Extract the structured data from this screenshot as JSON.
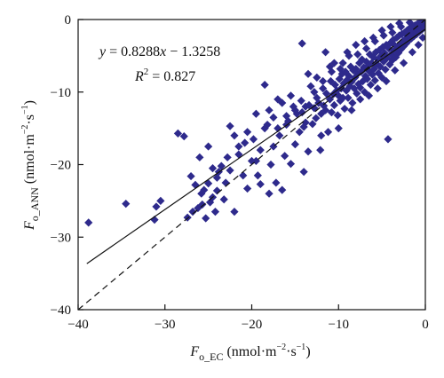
{
  "chart_data": {
    "type": "scatter",
    "title": "",
    "xlabel": {
      "var": "F",
      "sub": "o_EC",
      "unit_prefix": " (nmol·m",
      "exp1": "−2",
      "mid": "·s",
      "exp2": "−1",
      "unit_suffix": ")"
    },
    "ylabel": {
      "var": "F",
      "sub": "o_ANN",
      "unit_prefix": " (nmol·m",
      "exp1": "−2",
      "mid": "·s",
      "exp2": "−1",
      "unit_suffix": ")"
    },
    "xlim": [
      -40,
      0
    ],
    "ylim": [
      -40,
      0
    ],
    "xticks": [
      -40,
      -30,
      -20,
      -10,
      0
    ],
    "yticks": [
      -40,
      -30,
      -20,
      -10,
      0
    ],
    "xtick_labels": [
      "−40",
      "−30",
      "−20",
      "−10",
      "0"
    ],
    "ytick_labels": [
      "−40",
      "−30",
      "−20",
      "−10",
      "0"
    ],
    "grid": false,
    "marker": "diamond",
    "marker_color": "#2e2a8c",
    "annotation": {
      "equation": {
        "y": "y",
        "eq": " = 0.8288",
        "x": "x",
        "rest": " − 1.3258"
      },
      "r2": {
        "R": "R",
        "sup": "2",
        "rest": " = 0.827"
      }
    },
    "fit_line": {
      "slope": 0.8288,
      "intercept": -1.3258,
      "x_range": [
        -39,
        0
      ],
      "style": "solid"
    },
    "one_to_one_line": {
      "slope": 1,
      "intercept": 0,
      "x_range": [
        -40,
        0
      ],
      "style": "dashed"
    },
    "points": [
      [
        -38.8,
        -28.0
      ],
      [
        -34.5,
        -25.4
      ],
      [
        -31.2,
        -27.6
      ],
      [
        -31.0,
        -25.8
      ],
      [
        -30.5,
        -25.0
      ],
      [
        -27.4,
        -27.3
      ],
      [
        -27.0,
        -21.6
      ],
      [
        -26.8,
        -26.5
      ],
      [
        -26.2,
        -26.0
      ],
      [
        -25.8,
        -24.0
      ],
      [
        -25.5,
        -23.5
      ],
      [
        -25.3,
        -27.4
      ],
      [
        -25.0,
        -22.6
      ],
      [
        -24.8,
        -25.2
      ],
      [
        -24.5,
        -24.5
      ],
      [
        -24.2,
        -26.5
      ],
      [
        -24.5,
        -20.5
      ],
      [
        -24.0,
        -23.6
      ],
      [
        -23.5,
        -20.2
      ],
      [
        -23.0,
        -22.5
      ],
      [
        -26.0,
        -19.0
      ],
      [
        -28.5,
        -15.7
      ],
      [
        -27.8,
        -16.1
      ],
      [
        -25.0,
        -17.5
      ],
      [
        -22.5,
        -20.8
      ],
      [
        -22.0,
        -26.5
      ],
      [
        -22.5,
        -14.7
      ],
      [
        -22.0,
        -16.0
      ],
      [
        -21.5,
        -18.6
      ],
      [
        -20.8,
        -17.0
      ],
      [
        -20.5,
        -23.3
      ],
      [
        -19.8,
        -16.5
      ],
      [
        -19.5,
        -19.5
      ],
      [
        -19.3,
        -21.5
      ],
      [
        -19.0,
        -22.7
      ],
      [
        -18.5,
        -9.0
      ],
      [
        -18.2,
        -14.5
      ],
      [
        -18.0,
        -12.5
      ],
      [
        -17.8,
        -20.0
      ],
      [
        -17.5,
        -17.5
      ],
      [
        -17.2,
        -22.5
      ],
      [
        -17.0,
        -15.0
      ],
      [
        -16.8,
        -16.0
      ],
      [
        -16.5,
        -23.5
      ],
      [
        -16.2,
        -18.8
      ],
      [
        -16.0,
        -13.3
      ],
      [
        -15.8,
        -14.0
      ],
      [
        -15.5,
        -19.9
      ],
      [
        -15.2,
        -12.0
      ],
      [
        -15.0,
        -17.2
      ],
      [
        -14.8,
        -13.0
      ],
      [
        -14.5,
        -15.5
      ],
      [
        -14.3,
        -11.2
      ],
      [
        -14.2,
        -12.8
      ],
      [
        -14.0,
        -14.8
      ],
      [
        -13.8,
        -14.2
      ],
      [
        -13.5,
        -18.2
      ],
      [
        -13.4,
        -11.8
      ],
      [
        -13.2,
        -9.2
      ],
      [
        -13.0,
        -14.4
      ],
      [
        -12.8,
        -12.2
      ],
      [
        -12.6,
        -13.6
      ],
      [
        -12.5,
        -10.8
      ],
      [
        -12.3,
        -11.5
      ],
      [
        -12.1,
        -18.0
      ],
      [
        -12.0,
        -13.0
      ],
      [
        -11.8,
        -9.5
      ],
      [
        -11.7,
        -11.9
      ],
      [
        -11.5,
        -12.5
      ],
      [
        -11.4,
        -10.2
      ],
      [
        -11.2,
        -15.5
      ],
      [
        -11.0,
        -11.0
      ],
      [
        -10.9,
        -8.5
      ],
      [
        -10.8,
        -12.8
      ],
      [
        -10.6,
        -10.3
      ],
      [
        -10.5,
        -11.8
      ],
      [
        -10.4,
        -9.0
      ],
      [
        -10.2,
        -9.8
      ],
      [
        -10.1,
        -13.2
      ],
      [
        -10.0,
        -10.5
      ],
      [
        -9.9,
        -8.2
      ],
      [
        -9.8,
        -11.2
      ],
      [
        -9.7,
        -9.5
      ],
      [
        -9.6,
        -7.5
      ],
      [
        -9.5,
        -10.8
      ],
      [
        -9.4,
        -8.8
      ],
      [
        -9.3,
        -12.3
      ],
      [
        -9.2,
        -7.2
      ],
      [
        -9.1,
        -9.8
      ],
      [
        -9.0,
        -8.3
      ],
      [
        -8.9,
        -10.8
      ],
      [
        -8.8,
        -7.8
      ],
      [
        -8.7,
        -9.2
      ],
      [
        -8.6,
        -6.5
      ],
      [
        -8.5,
        -8.6
      ],
      [
        -8.4,
        -11.5
      ],
      [
        -8.3,
        -7.0
      ],
      [
        -8.2,
        -9.5
      ],
      [
        -8.1,
        -8.0
      ],
      [
        -8.0,
        -6.8
      ],
      [
        -7.9,
        -10.2
      ],
      [
        -7.8,
        -7.5
      ],
      [
        -7.7,
        -8.9
      ],
      [
        -7.6,
        -6.0
      ],
      [
        -7.5,
        -9.4
      ],
      [
        -7.4,
        -7.2
      ],
      [
        -7.3,
        -5.5
      ],
      [
        -7.2,
        -8.5
      ],
      [
        -7.1,
        -6.6
      ],
      [
        -7.0,
        -10.0
      ],
      [
        -6.9,
        -7.8
      ],
      [
        -6.8,
        -5.8
      ],
      [
        -6.7,
        -8.2
      ],
      [
        -6.6,
        -6.4
      ],
      [
        -6.5,
        -7.1
      ],
      [
        -6.4,
        -4.8
      ],
      [
        -6.3,
        -9.0
      ],
      [
        -6.2,
        -6.0
      ],
      [
        -6.1,
        -7.6
      ],
      [
        -6.0,
        -5.2
      ],
      [
        -5.9,
        -6.8
      ],
      [
        -5.8,
        -8.4
      ],
      [
        -5.7,
        -4.5
      ],
      [
        -5.6,
        -6.1
      ],
      [
        -5.5,
        -5.5
      ],
      [
        -5.4,
        -7.4
      ],
      [
        -5.3,
        -4.2
      ],
      [
        -5.2,
        -6.5
      ],
      [
        -5.1,
        -5.0
      ],
      [
        -5.0,
        -8.0
      ],
      [
        -4.9,
        -3.8
      ],
      [
        -4.8,
        -5.8
      ],
      [
        -4.7,
        -4.6
      ],
      [
        -4.6,
        -6.9
      ],
      [
        -4.5,
        -3.5
      ],
      [
        -4.4,
        -5.3
      ],
      [
        -4.3,
        -16.5
      ],
      [
        -4.2,
        -4.0
      ],
      [
        -4.1,
        -6.2
      ],
      [
        -4.0,
        -3.2
      ],
      [
        -3.9,
        -4.8
      ],
      [
        -3.8,
        -5.6
      ],
      [
        -3.7,
        -2.8
      ],
      [
        -3.6,
        -4.3
      ],
      [
        -3.5,
        -3.6
      ],
      [
        -3.4,
        -5.2
      ],
      [
        -3.3,
        -2.5
      ],
      [
        -3.2,
        -3.9
      ],
      [
        -3.1,
        -4.6
      ],
      [
        -3.0,
        -2.2
      ],
      [
        -2.9,
        -3.4
      ],
      [
        -2.8,
        -4.1
      ],
      [
        -2.7,
        -2.0
      ],
      [
        -2.6,
        -3.0
      ],
      [
        -2.5,
        -3.7
      ],
      [
        -2.4,
        -1.8
      ],
      [
        -2.3,
        -2.7
      ],
      [
        -2.2,
        -3.3
      ],
      [
        -2.1,
        -1.5
      ],
      [
        -2.0,
        -2.4
      ],
      [
        -1.9,
        -2.9
      ],
      [
        -1.8,
        -1.2
      ],
      [
        -1.7,
        -2.1
      ],
      [
        -1.6,
        -2.6
      ],
      [
        -1.5,
        -1.0
      ],
      [
        -1.4,
        -1.8
      ],
      [
        -1.3,
        -2.3
      ],
      [
        -1.2,
        -0.8
      ],
      [
        -1.1,
        -1.5
      ],
      [
        -1.0,
        -2.0
      ],
      [
        -0.9,
        -0.6
      ],
      [
        -0.8,
        -1.2
      ],
      [
        -0.7,
        -1.7
      ],
      [
        -0.6,
        -0.4
      ],
      [
        -0.5,
        -1.0
      ],
      [
        -0.4,
        -1.4
      ],
      [
        -0.3,
        -0.3
      ],
      [
        -0.2,
        -0.8
      ],
      [
        -0.1,
        -0.5
      ],
      [
        -14.2,
        -3.3
      ],
      [
        -11.5,
        -4.5
      ],
      [
        -10.5,
        -6.0
      ],
      [
        -9.0,
        -4.5
      ],
      [
        -8.0,
        -3.5
      ],
      [
        -7.0,
        -3.0
      ],
      [
        -6.0,
        -2.5
      ],
      [
        -5.0,
        -1.5
      ],
      [
        -4.0,
        -1.0
      ],
      [
        -3.0,
        -0.5
      ],
      [
        -12.5,
        -8.0
      ],
      [
        -11.0,
        -6.5
      ],
      [
        -13.5,
        -7.5
      ],
      [
        -15.5,
        -10.5
      ],
      [
        -16.5,
        -11.5
      ],
      [
        -17.5,
        -13.5
      ],
      [
        -18.5,
        -15.0
      ],
      [
        -19.5,
        -13.0
      ],
      [
        -20.5,
        -15.5
      ],
      [
        -21.0,
        -21.5
      ],
      [
        -18.0,
        -24.0
      ],
      [
        -23.8,
        -21.0
      ],
      [
        -14.0,
        -21.0
      ],
      [
        -12.0,
        -16.0
      ],
      [
        -10.0,
        -15.0
      ],
      [
        -8.5,
        -12.5
      ],
      [
        -7.5,
        -11.0
      ],
      [
        -6.5,
        -10.5
      ],
      [
        -5.5,
        -9.5
      ],
      [
        -4.5,
        -8.5
      ],
      [
        -3.5,
        -7.0
      ],
      [
        -2.5,
        -6.0
      ],
      [
        -1.5,
        -4.5
      ],
      [
        -0.8,
        -3.5
      ],
      [
        -0.3,
        -2.5
      ],
      [
        -9.5,
        -6.0
      ],
      [
        -8.8,
        -5.0
      ],
      [
        -7.8,
        -4.8
      ],
      [
        -6.8,
        -4.0
      ],
      [
        -5.8,
        -3.0
      ],
      [
        -4.8,
        -2.2
      ],
      [
        -3.8,
        -1.8
      ],
      [
        -2.8,
        -1.0
      ],
      [
        -1.8,
        -0.4
      ],
      [
        -12.8,
        -10.0
      ],
      [
        -11.8,
        -8.5
      ],
      [
        -10.8,
        -7.2
      ],
      [
        -9.8,
        -6.8
      ],
      [
        -13.8,
        -12.0
      ],
      [
        -15.0,
        -12.5
      ],
      [
        -16.0,
        -14.5
      ],
      [
        -17.0,
        -11.0
      ],
      [
        -19.0,
        -18.0
      ],
      [
        -20.0,
        -19.5
      ],
      [
        -21.5,
        -17.5
      ],
      [
        -22.8,
        -19.0
      ],
      [
        -23.2,
        -24.8
      ],
      [
        -25.7,
        -25.5
      ],
      [
        -26.5,
        -22.8
      ],
      [
        -24.0,
        -21.8
      ]
    ]
  }
}
